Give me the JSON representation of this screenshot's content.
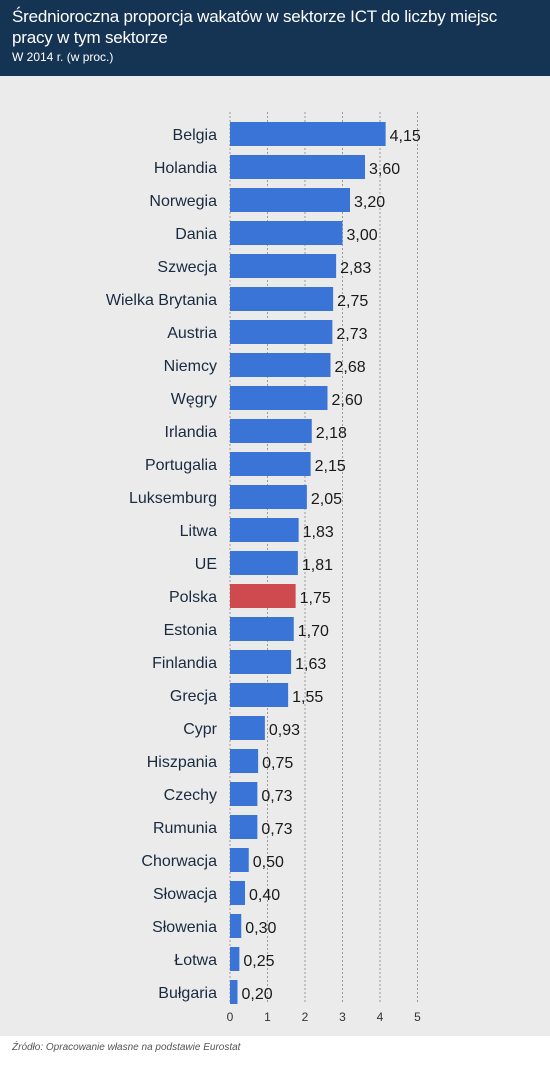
{
  "header": {
    "title": "Średnioroczna proporcja wakatów w sektorze ICT do liczby miejsc pracy w tym sektorze",
    "subtitle": "W 2014 r. (w proc.)"
  },
  "footer": {
    "source": "Źródło: Opracowanie własne na podstawie Eurostat"
  },
  "chart_data": {
    "type": "bar",
    "orientation": "horizontal",
    "title": "Średnioroczna proporcja wakatów w sektorze ICT do liczby miejsc pracy w tym sektorze",
    "subtitle": "W 2014 r. (w proc.)",
    "categories": [
      "Belgia",
      "Holandia",
      "Norwegia",
      "Dania",
      "Szwecja",
      "Wielka Brytania",
      "Austria",
      "Niemcy",
      "Węgry",
      "Irlandia",
      "Portugalia",
      "Luksemburg",
      "Litwa",
      "UE",
      "Polska",
      "Estonia",
      "Finlandia",
      "Grecja",
      "Cypr",
      "Hiszpania",
      "Czechy",
      "Rumunia",
      "Chorwacja",
      "Słowacja",
      "Słowenia",
      "Łotwa",
      "Bułgaria"
    ],
    "values": [
      4.15,
      3.6,
      3.2,
      3.0,
      2.83,
      2.75,
      2.73,
      2.68,
      2.6,
      2.18,
      2.15,
      2.05,
      1.83,
      1.81,
      1.75,
      1.7,
      1.63,
      1.55,
      0.93,
      0.75,
      0.73,
      0.73,
      0.5,
      0.4,
      0.3,
      0.25,
      0.2
    ],
    "value_labels": [
      "4,15",
      "3,60",
      "3,20",
      "3,00",
      "2,83",
      "2,75",
      "2,73",
      "2,68",
      "2,60",
      "2,18",
      "2,15",
      "2,05",
      "1,83",
      "1,81",
      "1,75",
      "1,70",
      "1,63",
      "1,55",
      "0,93",
      "0,75",
      "0,73",
      "0,73",
      "0,50",
      "0,40",
      "0,30",
      "0,25",
      "0,20"
    ],
    "highlight": "Polska",
    "xticks": [
      0,
      1,
      2,
      3,
      4,
      5
    ],
    "xlim": [
      0,
      5
    ],
    "grid": true,
    "colors": {
      "bar": "#3a74d6",
      "highlight": "#cf4a4f",
      "header": "#153454",
      "background": "#ebebeb",
      "label": "#1a2a3f",
      "grid": "#9a9a9a"
    }
  }
}
